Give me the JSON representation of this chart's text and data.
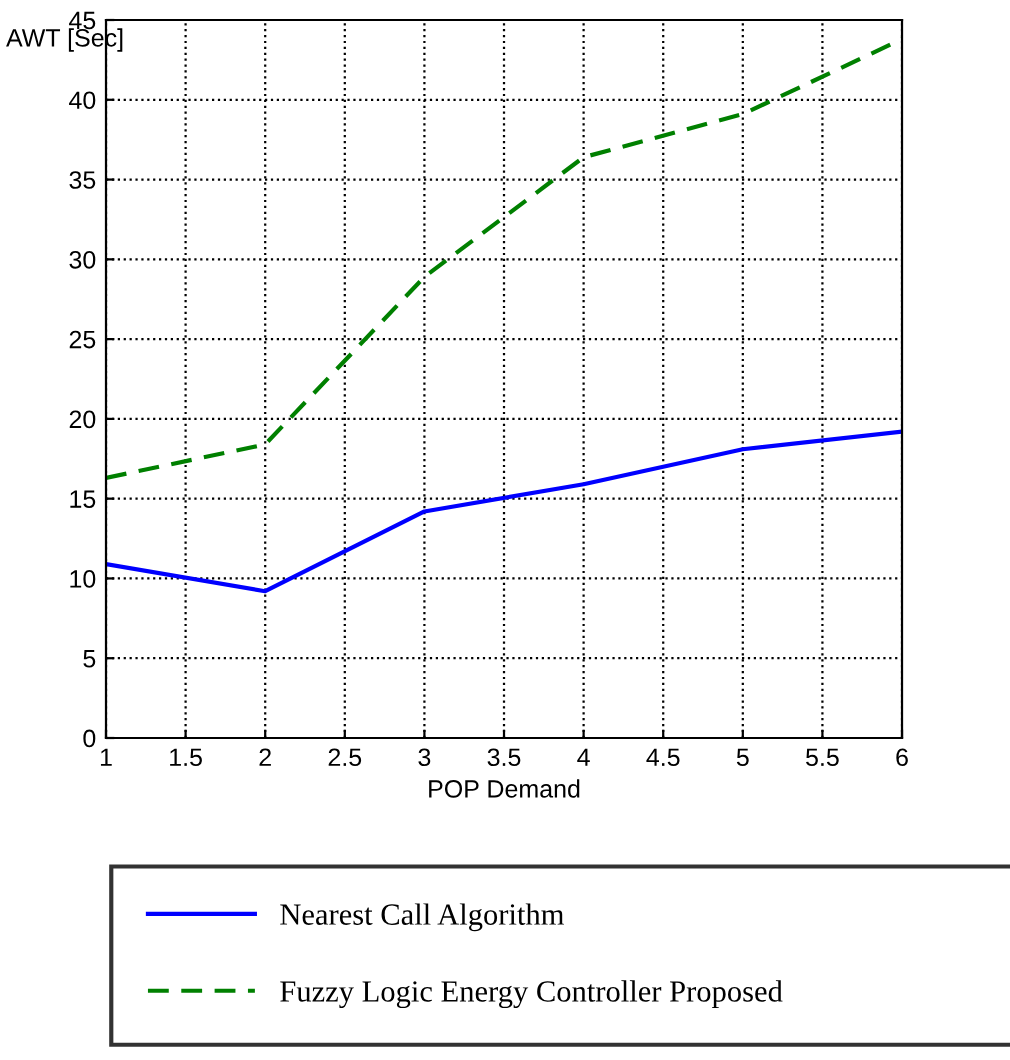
{
  "chart_data": {
    "type": "line",
    "xlabel": "POP Demand",
    "ylabel": "AWT [Sec]",
    "x": [
      1,
      2,
      3,
      4,
      5,
      6
    ],
    "series": [
      {
        "name": "Nearest Call Algorithm",
        "color": "#0000ff",
        "line_style": "solid",
        "values": [
          10.9,
          9.2,
          14.2,
          15.9,
          18.1,
          19.2
        ]
      },
      {
        "name": "Fuzzy Logic Energy Controller Proposed",
        "color": "#008000",
        "line_style": "dashed",
        "values": [
          16.3,
          18.4,
          28.9,
          36.4,
          39.1,
          43.8
        ]
      }
    ],
    "xlim": [
      1,
      6
    ],
    "xticks": [
      1,
      1.5,
      2,
      2.5,
      3,
      3.5,
      4,
      4.5,
      5,
      5.5,
      6
    ],
    "ylim": [
      0,
      45
    ],
    "yticks": [
      0,
      5,
      10,
      15,
      20,
      25,
      30,
      35,
      40,
      45
    ],
    "grid": true,
    "legend": "bottom",
    "marker": "none"
  }
}
